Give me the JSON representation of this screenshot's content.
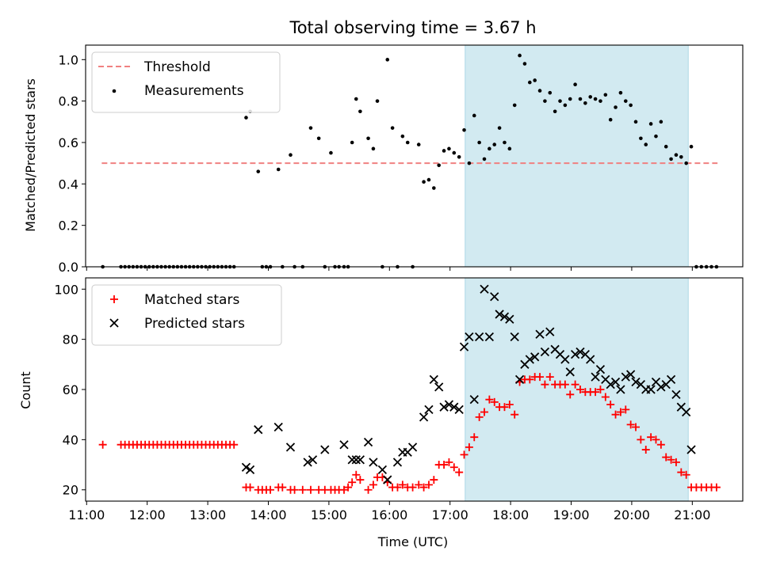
{
  "chart_data": [
    {
      "type": "scatter",
      "title": "Total observing time = 3.67 h",
      "xlabel": "",
      "ylabel": "Matched/Predicted stars",
      "xlim": [
        "10:59",
        "21:50"
      ],
      "ylim": [
        0,
        1.07
      ],
      "yticks": [
        "0.0",
        "0.2",
        "0.4",
        "0.6",
        "0.8",
        "1.0"
      ],
      "shaded_interval": [
        "17:15",
        "20:56"
      ],
      "shade_color": "#add8e6",
      "legend": "upper left",
      "threshold": {
        "name": "Threshold",
        "value": 0.5,
        "x_range": [
          "11:15",
          "21:25"
        ],
        "color": "#f08080",
        "style": "dashed"
      },
      "series": [
        {
          "name": "Measurements",
          "color": "#000000",
          "x": [
            "11:16",
            "11:34",
            "11:38",
            "11:42",
            "11:46",
            "11:50",
            "11:54",
            "11:58",
            "12:02",
            "12:06",
            "12:10",
            "12:14",
            "12:18",
            "12:22",
            "12:26",
            "12:30",
            "12:34",
            "12:38",
            "12:42",
            "12:46",
            "12:50",
            "12:54",
            "12:58",
            "13:02",
            "13:06",
            "13:10",
            "13:14",
            "13:18",
            "13:22",
            "13:26",
            "13:38",
            "13:42",
            "13:50",
            "13:54",
            "13:58",
            "14:02",
            "14:10",
            "14:14",
            "14:22",
            "14:26",
            "14:34",
            "14:42",
            "14:50",
            "14:56",
            "15:02",
            "15:06",
            "15:10",
            "15:15",
            "15:19",
            "15:23",
            "15:27",
            "15:31",
            "15:39",
            "15:44",
            "15:48",
            "15:53",
            "15:58",
            "16:03",
            "16:08",
            "16:13",
            "16:18",
            "16:23",
            "16:29",
            "16:34",
            "16:39",
            "16:44",
            "16:49",
            "16:54",
            "16:59",
            "17:04",
            "17:09",
            "17:14",
            "17:19",
            "17:24",
            "17:29",
            "17:34",
            "17:39",
            "17:44",
            "17:49",
            "17:54",
            "17:59",
            "18:04",
            "18:09",
            "18:14",
            "18:19",
            "18:24",
            "18:29",
            "18:34",
            "18:39",
            "18:44",
            "18:49",
            "18:54",
            "18:59",
            "19:04",
            "19:09",
            "19:14",
            "19:19",
            "19:24",
            "19:29",
            "19:34",
            "19:39",
            "19:44",
            "19:49",
            "19:54",
            "19:59",
            "20:04",
            "20:09",
            "20:14",
            "20:19",
            "20:24",
            "20:29",
            "20:34",
            "20:39",
            "20:44",
            "20:49",
            "20:54",
            "20:59",
            "21:04",
            "21:09",
            "21:14",
            "21:19",
            "21:24"
          ],
          "y": [
            0.0,
            0.0,
            0.0,
            0.0,
            0.0,
            0.0,
            0.0,
            0.0,
            0.0,
            0.0,
            0.0,
            0.0,
            0.0,
            0.0,
            0.0,
            0.0,
            0.0,
            0.0,
            0.0,
            0.0,
            0.0,
            0.0,
            0.0,
            0.0,
            0.0,
            0.0,
            0.0,
            0.0,
            0.0,
            0.0,
            0.72,
            0.75,
            0.46,
            0.0,
            0.0,
            0.0,
            0.47,
            0.0,
            0.54,
            0.0,
            0.0,
            0.67,
            0.62,
            0.0,
            0.55,
            0.0,
            0.0,
            0.0,
            0.0,
            0.6,
            0.81,
            0.75,
            0.62,
            0.57,
            0.8,
            0.0,
            1.0,
            0.67,
            0.0,
            0.63,
            0.6,
            0.0,
            0.59,
            0.41,
            0.42,
            0.38,
            0.49,
            0.56,
            0.57,
            0.55,
            0.53,
            0.66,
            0.5,
            0.73,
            0.6,
            0.52,
            0.57,
            0.59,
            0.67,
            0.6,
            0.57,
            0.78,
            1.02,
            0.98,
            0.89,
            0.9,
            0.85,
            0.8,
            0.84,
            0.75,
            0.8,
            0.78,
            0.81,
            0.88,
            0.81,
            0.79,
            0.82,
            0.81,
            0.8,
            0.83,
            0.71,
            0.77,
            0.84,
            0.8,
            0.78,
            0.7,
            0.62,
            0.59,
            0.69,
            0.63,
            0.7,
            0.58,
            0.52,
            0.54,
            0.53,
            0.5,
            0.58,
            0.0,
            0.0,
            0.0,
            0.0,
            0.0
          ]
        }
      ]
    },
    {
      "type": "scatter",
      "title": "",
      "xlabel": "Time (UTC)",
      "ylabel": "Count",
      "xlim": [
        "10:59",
        "21:50"
      ],
      "ylim": [
        15.5,
        104.5
      ],
      "xticks": [
        "11:00",
        "12:00",
        "13:00",
        "14:00",
        "15:00",
        "16:00",
        "17:00",
        "18:00",
        "19:00",
        "20:00",
        "21:00"
      ],
      "yticks": [
        "20",
        "40",
        "60",
        "80",
        "100"
      ],
      "shaded_interval": [
        "17:15",
        "20:56"
      ],
      "shade_color": "#add8e6",
      "legend": "upper left",
      "series": [
        {
          "name": "Matched stars",
          "marker": "plus",
          "color": "#ff0000",
          "x": [
            "11:16",
            "11:34",
            "11:38",
            "11:42",
            "11:46",
            "11:50",
            "11:54",
            "11:58",
            "12:02",
            "12:06",
            "12:10",
            "12:14",
            "12:18",
            "12:22",
            "12:26",
            "12:30",
            "12:34",
            "12:38",
            "12:42",
            "12:46",
            "12:50",
            "12:54",
            "12:58",
            "13:02",
            "13:06",
            "13:10",
            "13:14",
            "13:18",
            "13:22",
            "13:26",
            "13:38",
            "13:42",
            "13:50",
            "13:54",
            "13:58",
            "14:02",
            "14:10",
            "14:14",
            "14:22",
            "14:26",
            "14:34",
            "14:42",
            "14:50",
            "14:56",
            "15:02",
            "15:06",
            "15:10",
            "15:15",
            "15:19",
            "15:23",
            "15:27",
            "15:31",
            "15:39",
            "15:44",
            "15:48",
            "15:53",
            "15:58",
            "16:03",
            "16:08",
            "16:13",
            "16:18",
            "16:23",
            "16:29",
            "16:34",
            "16:39",
            "16:44",
            "16:49",
            "16:54",
            "16:59",
            "17:04",
            "17:09",
            "17:14",
            "17:19",
            "17:24",
            "17:29",
            "17:34",
            "17:39",
            "17:44",
            "17:49",
            "17:54",
            "17:59",
            "18:04",
            "18:09",
            "18:14",
            "18:19",
            "18:24",
            "18:29",
            "18:34",
            "18:39",
            "18:44",
            "18:49",
            "18:54",
            "18:59",
            "19:04",
            "19:09",
            "19:14",
            "19:19",
            "19:24",
            "19:29",
            "19:34",
            "19:39",
            "19:44",
            "19:49",
            "19:54",
            "19:59",
            "20:04",
            "20:09",
            "20:14",
            "20:19",
            "20:24",
            "20:29",
            "20:34",
            "20:39",
            "20:44",
            "20:49",
            "20:54",
            "20:59",
            "21:04",
            "21:09",
            "21:14",
            "21:19",
            "21:24"
          ],
          "y": [
            38,
            38,
            38,
            38,
            38,
            38,
            38,
            38,
            38,
            38,
            38,
            38,
            38,
            38,
            38,
            38,
            38,
            38,
            38,
            38,
            38,
            38,
            38,
            38,
            38,
            38,
            38,
            38,
            38,
            38,
            21,
            21,
            20,
            20,
            20,
            20,
            21,
            21,
            20,
            20,
            20,
            20,
            20,
            20,
            20,
            20,
            20,
            20,
            21,
            23,
            26,
            24,
            20,
            22,
            25,
            25,
            23,
            21,
            21,
            22,
            21,
            21,
            22,
            21,
            22,
            24,
            30,
            30,
            31,
            29,
            27,
            34,
            37,
            41,
            49,
            51,
            56,
            55,
            53,
            53,
            54,
            50,
            63,
            64,
            64,
            65,
            65,
            62,
            65,
            62,
            62,
            62,
            58,
            62,
            60,
            59,
            59,
            59,
            60,
            57,
            54,
            50,
            51,
            52,
            46,
            45,
            40,
            36,
            41,
            40,
            38,
            33,
            32,
            31,
            27,
            26,
            21,
            21,
            21,
            21,
            21,
            21
          ]
        },
        {
          "name": "Predicted stars",
          "marker": "x",
          "color": "#000000",
          "x": [
            "13:38",
            "13:42",
            "13:50",
            "14:10",
            "14:22",
            "14:39",
            "14:44",
            "14:56",
            "15:15",
            "15:23",
            "15:27",
            "15:31",
            "15:39",
            "15:44",
            "15:53",
            "15:58",
            "16:08",
            "16:13",
            "16:18",
            "16:23",
            "16:34",
            "16:39",
            "16:44",
            "16:49",
            "16:54",
            "16:59",
            "17:04",
            "17:09",
            "17:14",
            "17:19",
            "17:24",
            "17:29",
            "17:34",
            "17:39",
            "17:44",
            "17:49",
            "17:54",
            "17:59",
            "18:04",
            "18:09",
            "18:14",
            "18:19",
            "18:24",
            "18:29",
            "18:34",
            "18:39",
            "18:44",
            "18:49",
            "18:54",
            "18:59",
            "19:04",
            "19:09",
            "19:14",
            "19:19",
            "19:24",
            "19:29",
            "19:34",
            "19:39",
            "19:44",
            "19:49",
            "19:54",
            "19:59",
            "20:04",
            "20:09",
            "20:14",
            "20:19",
            "20:24",
            "20:29",
            "20:34",
            "20:39",
            "20:44",
            "20:49",
            "20:54",
            "20:59"
          ],
          "y": [
            29,
            28,
            44,
            45,
            37,
            31,
            32,
            36,
            38,
            32,
            32,
            32,
            39,
            31,
            28,
            24,
            31,
            35,
            35,
            37,
            49,
            52,
            64,
            61,
            53,
            54,
            53,
            52,
            77,
            81,
            56,
            81,
            100,
            81,
            97,
            90,
            89,
            88,
            81,
            64,
            70,
            72,
            73,
            82,
            75,
            83,
            76,
            74,
            72,
            67,
            74,
            75,
            74,
            72,
            65,
            68,
            64,
            62,
            63,
            60,
            65,
            66,
            63,
            62,
            60,
            60,
            63,
            61,
            62,
            64,
            58,
            53,
            51,
            36
          ]
        }
      ]
    }
  ]
}
